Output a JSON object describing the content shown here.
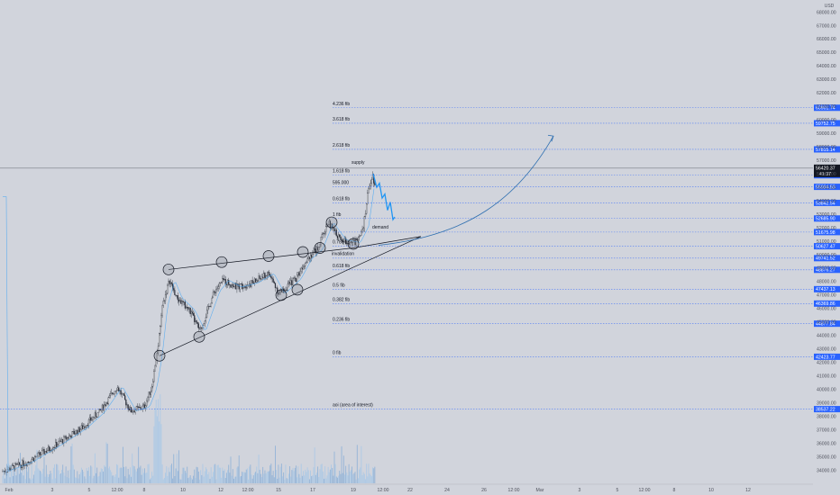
{
  "chart_data": {
    "type": "candlestick",
    "currency": "USD",
    "price_scale": {
      "min": 33500,
      "max": 68500,
      "ticks": [
        34000,
        35000,
        36000,
        37000,
        38000,
        39000,
        40000,
        41000,
        42000,
        43000,
        44000,
        45000,
        46000,
        47000,
        48000,
        49000,
        50000,
        51000,
        52000,
        53000,
        54000,
        55000,
        56000,
        57000,
        58000,
        59000,
        60000,
        61000,
        62000,
        63000,
        64000,
        65000,
        66000,
        67000,
        68000
      ]
    },
    "time_axis": {
      "labels": [
        "Feb",
        "3",
        "5",
        "12:00",
        "8",
        "10",
        "12",
        "12:00",
        "15",
        "17",
        "19",
        "12:00",
        "22",
        "24",
        "26",
        "12:00",
        "Mar",
        "3",
        "5",
        "12:00",
        "8",
        "10",
        "12"
      ]
    },
    "fib_levels": [
      {
        "label": "4.236 fib",
        "price": 60901.74
      },
      {
        "label": "3.618 fib",
        "price": 59752.75
      },
      {
        "label": "2.618 fib",
        "price": 57815.14
      },
      {
        "label": "1.618 fib",
        "price": 55893.47
      },
      {
        "label": "595.000",
        "price": 55034.53
      },
      {
        "label": "0.618 fib",
        "price": 53842.54
      },
      {
        "label": "1 fib",
        "price": 52685.9
      },
      {
        "label": "0.786 fib",
        "price": 50627.47
      },
      {
        "label": "0.618 fib",
        "price": 48876.27
      },
      {
        "label": "0.5 fib",
        "price": 47437.13
      },
      {
        "label": "0.382 fib",
        "price": 46369.86
      },
      {
        "label": "0.236 fib",
        "price": 44877.84
      },
      {
        "label": "0 fib",
        "price": 42423.77
      },
      {
        "label": "aoi (area of interest)",
        "price": 38537.22
      }
    ],
    "extra_levels": [
      51675.98,
      49741.52
    ],
    "current_price": "56420.37",
    "countdown": "41:37",
    "annotations": {
      "supply": "supply",
      "demand": "demand",
      "invalidation": "invalidation"
    },
    "colors": {
      "background": "#d1d4dc",
      "candle_up": "#26a69a",
      "candle_down": "#ef5350",
      "price_label": "#2962ff",
      "projection": "#2196f3",
      "current_price_label": "#131722"
    }
  }
}
